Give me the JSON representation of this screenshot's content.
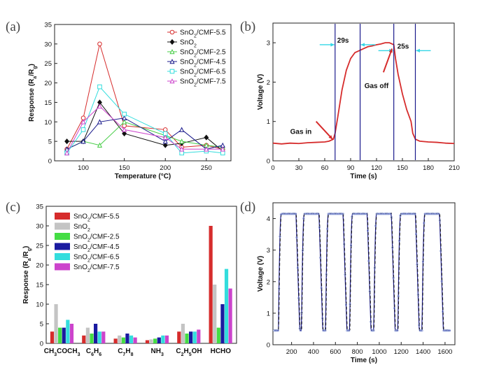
{
  "chart_data": [
    {
      "panel": "(a)",
      "type": "line",
      "xlabel": "Temperature (°C)",
      "ylabel": "Response (Ra/Rg)",
      "ylabel_parts": [
        "Response (R",
        "a",
        "/R",
        "g",
        ")"
      ],
      "xlim": [
        65,
        280
      ],
      "ylim": [
        0,
        35
      ],
      "xticks": [
        100,
        150,
        200,
        250
      ],
      "yticks": [
        0,
        5,
        10,
        15,
        20,
        25,
        30,
        35
      ],
      "x": [
        80,
        100,
        120,
        150,
        200,
        220,
        250,
        270
      ],
      "series": [
        {
          "name": "SnO2/CMF-5.5",
          "name_parts": [
            "SnO",
            "2",
            "/CMF-5.5"
          ],
          "color": "#d62c2c",
          "marker": "circle",
          "values": [
            3,
            11,
            30,
            9,
            8,
            3.5,
            4,
            3
          ]
        },
        {
          "name": "SnO2",
          "name_parts": [
            "SnO",
            "2",
            ""
          ],
          "color": "#111111",
          "marker": "diamond",
          "values": [
            5,
            5,
            15,
            7,
            4,
            4.5,
            6,
            2.5
          ]
        },
        {
          "name": "SnO2/CMF-2.5",
          "name_parts": [
            "SnO",
            "2",
            "/CMF-2.5"
          ],
          "color": "#44cc44",
          "marker": "triangle",
          "values": [
            3,
            5,
            4,
            10,
            6.5,
            5,
            4,
            3.5
          ]
        },
        {
          "name": "SnO2/CMF-4.5",
          "name_parts": [
            "SnO",
            "2",
            "/CMF-4.5"
          ],
          "color": "#1a1a8c",
          "marker": "triangle",
          "values": [
            3,
            5,
            10,
            11,
            5,
            8,
            3,
            4
          ]
        },
        {
          "name": "SnO2/CMF-6.5",
          "name_parts": [
            "SnO",
            "2",
            "/CMF-6.5"
          ],
          "color": "#33dddd",
          "marker": "square",
          "values": [
            2,
            8,
            19,
            12,
            7,
            2,
            2.5,
            2
          ]
        },
        {
          "name": "SnO2/CMF-7.5",
          "name_parts": [
            "SnO",
            "2",
            "/CMF-7.5"
          ],
          "color": "#cc44cc",
          "marker": "triangle",
          "values": [
            2,
            10,
            14,
            8,
            6,
            3,
            3,
            3
          ]
        }
      ],
      "legend_position": "top-right"
    },
    {
      "panel": "(b)",
      "type": "line",
      "xlabel": "Time (s)",
      "ylabel": "Voltage (V)",
      "xlim": [
        0,
        210
      ],
      "ylim": [
        0,
        3.5
      ],
      "xticks": [
        0,
        30,
        60,
        90,
        120,
        150,
        180,
        210
      ],
      "yticks": [
        0,
        1,
        2,
        3
      ],
      "series": [
        {
          "color": "#d62c2c",
          "x": [
            0,
            10,
            20,
            30,
            40,
            50,
            60,
            65,
            70,
            72,
            75,
            80,
            85,
            90,
            95,
            100,
            105,
            110,
            115,
            120,
            125,
            130,
            135,
            140,
            142,
            145,
            150,
            155,
            160,
            162,
            165,
            170,
            180,
            190,
            200,
            210
          ],
          "values": [
            0.45,
            0.43,
            0.45,
            0.44,
            0.46,
            0.47,
            0.48,
            0.5,
            0.55,
            0.7,
            1.1,
            1.8,
            2.3,
            2.6,
            2.75,
            2.8,
            2.85,
            2.9,
            2.92,
            2.95,
            2.97,
            3.0,
            3.0,
            2.95,
            2.6,
            2.2,
            1.7,
            1.3,
            1.0,
            0.7,
            0.55,
            0.5,
            0.48,
            0.47,
            0.45,
            0.44
          ]
        }
      ],
      "vlines": [
        72,
        101,
        140,
        165
      ],
      "annotations": [
        {
          "text": "29s",
          "x": 86.5,
          "y": 2.95
        },
        {
          "text": "25s",
          "x": 152.5,
          "y": 2.8
        },
        {
          "text": "Gas in",
          "x": 35,
          "y": 0.65
        },
        {
          "text": "Gas off",
          "x": 121,
          "y": 1.85
        }
      ]
    },
    {
      "panel": "(c)",
      "type": "bar",
      "ylabel": "Response (Ra/Rg)",
      "ylabel_parts": [
        "Response (R",
        "a",
        "/R",
        "g",
        ")"
      ],
      "ylim": [
        0,
        35
      ],
      "yticks": [
        0,
        5,
        10,
        15,
        20,
        25,
        30,
        35
      ],
      "categories": [
        "CH3COCH3",
        "C6H6",
        "C7H8",
        "NH3",
        "C2H5OH",
        "HCHO"
      ],
      "category_parts": [
        [
          "CH",
          "3",
          "COCH",
          "3"
        ],
        [
          "C",
          "6",
          "H",
          "6"
        ],
        [
          "C",
          "7",
          "H",
          "8"
        ],
        [
          "NH",
          "3"
        ],
        [
          "C",
          "2",
          "H",
          "5",
          "OH"
        ],
        [
          "HCHO"
        ]
      ],
      "series": [
        {
          "name": "SnO2/CMF-5.5",
          "name_parts": [
            "SnO",
            "2",
            "/CMF-5.5"
          ],
          "color": "#d62c2c",
          "values": [
            3,
            2,
            1.2,
            0.8,
            3,
            30
          ]
        },
        {
          "name": "SnO2",
          "name_parts": [
            "SnO",
            "2",
            ""
          ],
          "color": "#c4c4c4",
          "values": [
            10,
            4,
            2,
            1,
            5,
            15
          ]
        },
        {
          "name": "SnO2/CMF-2.5",
          "name_parts": [
            "SnO",
            "2",
            "/CMF-2.5"
          ],
          "color": "#44dd44",
          "values": [
            4,
            2.5,
            1.5,
            1.2,
            2.5,
            4
          ]
        },
        {
          "name": "SnO2/CMF-4.5",
          "name_parts": [
            "SnO",
            "2",
            "/CMF-4.5"
          ],
          "color": "#1a1aa0",
          "values": [
            4,
            5,
            2.5,
            1.5,
            3,
            10
          ]
        },
        {
          "name": "SnO2/CMF-6.5",
          "name_parts": [
            "SnO",
            "2",
            "/CMF-6.5"
          ],
          "color": "#33dddd",
          "values": [
            6,
            3,
            2,
            2,
            3,
            19
          ]
        },
        {
          "name": "SnO2/CMF-7.5",
          "name_parts": [
            "SnO",
            "2",
            "/CMF-7.5"
          ],
          "color": "#cc44cc",
          "values": [
            5,
            3,
            1.5,
            2,
            3.5,
            14
          ]
        }
      ],
      "legend_position": "top-left"
    },
    {
      "panel": "(d)",
      "type": "line",
      "xlabel": "Time (s)",
      "ylabel": "Voltage (V)",
      "xlim": [
        30,
        1690
      ],
      "ylim": [
        0,
        4.5
      ],
      "xticks": [
        200,
        400,
        600,
        800,
        1000,
        1200,
        1400,
        1600
      ],
      "yticks": [
        0,
        1,
        2,
        3,
        4
      ],
      "cycles": {
        "on_starts": [
          80,
          290,
          510,
          730,
          950,
          1170,
          1390
        ],
        "on_length": 160,
        "baseline": 0.45,
        "peak": 4.15,
        "end": 1650
      },
      "series": [
        {
          "color": "#1a1a8c",
          "style": "solid"
        },
        {
          "color": "#111111",
          "style": "dashed"
        },
        {
          "color": "#8fa0d8",
          "style": "markers"
        }
      ]
    }
  ]
}
